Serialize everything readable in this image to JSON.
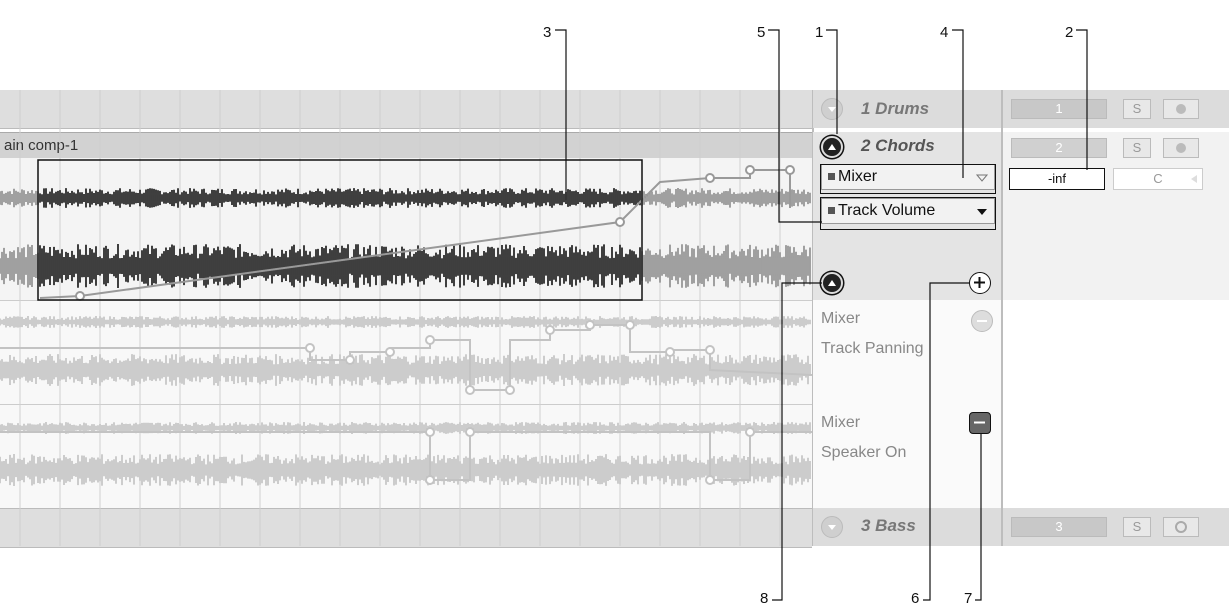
{
  "callouts": [
    "1",
    "2",
    "3",
    "4",
    "5",
    "6",
    "7",
    "8"
  ],
  "clip": {
    "name": "ain comp-1"
  },
  "tracks": [
    {
      "name": "1 Drums",
      "number": "1",
      "solo": "S"
    },
    {
      "name": "2 Chords",
      "number": "2",
      "solo": "S"
    },
    {
      "name": "3 Bass",
      "number": "3",
      "solo": "S"
    }
  ],
  "automation": {
    "device_chooser": "Mixer",
    "param_chooser": "Track Volume",
    "lanes": [
      {
        "device": "Mixer",
        "param": "Track Panning"
      },
      {
        "device": "Mixer",
        "param": "Speaker On"
      }
    ]
  },
  "mixer": {
    "volume": "-inf",
    "pan": "C"
  },
  "colors": {
    "accent_dark": "#111111",
    "lane_grey": "#bdbdbd",
    "header_bg": "#d6d6d6"
  },
  "icons": [
    "fold-down-icon",
    "fold-up-icon",
    "plus-icon",
    "minus-icon",
    "record-dot-icon"
  ]
}
